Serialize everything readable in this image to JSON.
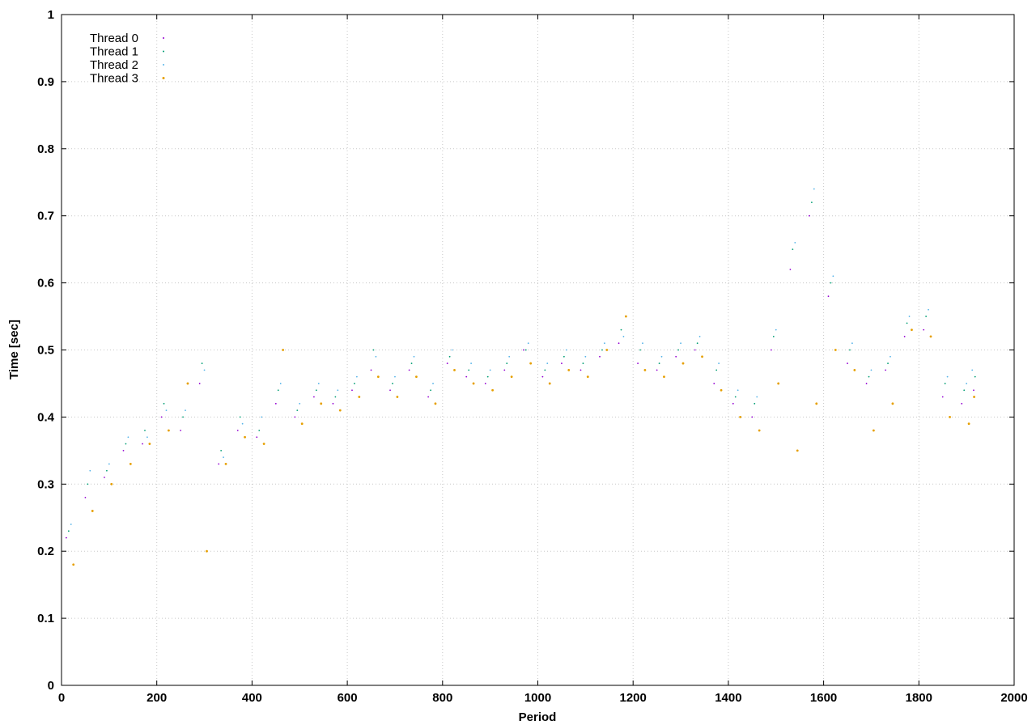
{
  "chart_data": {
    "type": "scatter",
    "xlabel": "Period",
    "ylabel": "Time [sec]",
    "xlim": [
      0,
      2000
    ],
    "ylim": [
      0,
      1
    ],
    "x_ticks": [
      "0",
      "200",
      "400",
      "600",
      "800",
      "1000",
      "1200",
      "1400",
      "1600",
      "1800",
      "2000"
    ],
    "y_ticks": [
      "0",
      "0.1",
      "0.2",
      "0.3",
      "0.4",
      "0.5",
      "0.6",
      "0.7",
      "0.8",
      "0.9",
      "1"
    ],
    "grid": true,
    "legend_position": "top-left",
    "series": [
      {
        "name": "Thread 0",
        "color": "#9400d3",
        "x": [
          10,
          50,
          90,
          130,
          170,
          210,
          250,
          290,
          330,
          370,
          410,
          450,
          490,
          530,
          570,
          610,
          650,
          690,
          730,
          770,
          810,
          850,
          890,
          930,
          970,
          1010,
          1050,
          1090,
          1130,
          1170,
          1210,
          1250,
          1290,
          1330,
          1370,
          1410,
          1450,
          1490,
          1530,
          1570,
          1610,
          1650,
          1690,
          1730,
          1770,
          1810,
          1850,
          1890,
          1915
        ],
        "y": [
          0.22,
          0.28,
          0.31,
          0.35,
          0.36,
          0.4,
          0.38,
          0.45,
          0.33,
          0.38,
          0.37,
          0.42,
          0.4,
          0.43,
          0.42,
          0.44,
          0.47,
          0.44,
          0.47,
          0.43,
          0.48,
          0.46,
          0.45,
          0.47,
          0.5,
          0.46,
          0.48,
          0.47,
          0.49,
          0.51,
          0.48,
          0.47,
          0.49,
          0.5,
          0.45,
          0.42,
          0.4,
          0.5,
          0.62,
          0.7,
          0.58,
          0.48,
          0.45,
          0.47,
          0.52,
          0.53,
          0.43,
          0.42,
          0.44
        ]
      },
      {
        "name": "Thread 1",
        "color": "#009e73",
        "x": [
          15,
          55,
          95,
          135,
          175,
          215,
          255,
          295,
          335,
          375,
          415,
          455,
          495,
          535,
          575,
          615,
          655,
          695,
          735,
          775,
          815,
          855,
          895,
          935,
          975,
          1015,
          1055,
          1095,
          1135,
          1175,
          1215,
          1255,
          1295,
          1335,
          1375,
          1415,
          1455,
          1495,
          1535,
          1575,
          1615,
          1655,
          1695,
          1735,
          1775,
          1815,
          1855,
          1895,
          1918
        ],
        "y": [
          0.23,
          0.3,
          0.32,
          0.36,
          0.38,
          0.42,
          0.4,
          0.48,
          0.35,
          0.4,
          0.38,
          0.44,
          0.41,
          0.44,
          0.43,
          0.45,
          0.5,
          0.45,
          0.48,
          0.44,
          0.49,
          0.47,
          0.46,
          0.48,
          0.5,
          0.47,
          0.49,
          0.48,
          0.5,
          0.53,
          0.5,
          0.48,
          0.5,
          0.51,
          0.47,
          0.43,
          0.42,
          0.52,
          0.65,
          0.72,
          0.6,
          0.5,
          0.46,
          0.48,
          0.54,
          0.55,
          0.45,
          0.44,
          0.46
        ]
      },
      {
        "name": "Thread 2",
        "color": "#56b4e9",
        "x": [
          20,
          60,
          100,
          140,
          180,
          220,
          260,
          300,
          340,
          380,
          420,
          460,
          500,
          540,
          580,
          620,
          660,
          700,
          740,
          780,
          820,
          860,
          900,
          940,
          980,
          1020,
          1060,
          1100,
          1140,
          1180,
          1220,
          1260,
          1300,
          1340,
          1380,
          1420,
          1460,
          1500,
          1540,
          1580,
          1620,
          1660,
          1700,
          1740,
          1780,
          1820,
          1860,
          1900,
          1912
        ],
        "y": [
          0.24,
          0.32,
          0.33,
          0.37,
          0.37,
          0.41,
          0.41,
          0.47,
          0.34,
          0.39,
          0.4,
          0.45,
          0.42,
          0.45,
          0.44,
          0.46,
          0.49,
          0.46,
          0.49,
          0.45,
          0.5,
          0.48,
          0.47,
          0.49,
          0.51,
          0.48,
          0.5,
          0.49,
          0.51,
          0.52,
          0.51,
          0.49,
          0.51,
          0.52,
          0.48,
          0.44,
          0.43,
          0.53,
          0.66,
          0.74,
          0.61,
          0.51,
          0.47,
          0.49,
          0.55,
          0.56,
          0.46,
          0.45,
          0.47
        ]
      },
      {
        "name": "Thread 3",
        "color": "#e69f00",
        "x": [
          25,
          65,
          105,
          145,
          185,
          225,
          265,
          305,
          345,
          385,
          425,
          465,
          505,
          545,
          585,
          625,
          665,
          705,
          745,
          785,
          825,
          865,
          905,
          945,
          985,
          1025,
          1065,
          1105,
          1145,
          1185,
          1225,
          1265,
          1305,
          1345,
          1385,
          1425,
          1465,
          1505,
          1545,
          1585,
          1625,
          1665,
          1705,
          1745,
          1785,
          1825,
          1865,
          1905,
          1916
        ],
        "y": [
          0.18,
          0.26,
          0.3,
          0.33,
          0.36,
          0.38,
          0.45,
          0.2,
          0.33,
          0.37,
          0.36,
          0.5,
          0.39,
          0.42,
          0.41,
          0.43,
          0.46,
          0.43,
          0.46,
          0.42,
          0.47,
          0.45,
          0.44,
          0.46,
          0.48,
          0.45,
          0.47,
          0.46,
          0.5,
          0.55,
          0.47,
          0.46,
          0.48,
          0.49,
          0.44,
          0.4,
          0.38,
          0.45,
          0.35,
          0.42,
          0.5,
          0.47,
          0.38,
          0.42,
          0.53,
          0.52,
          0.4,
          0.39,
          0.43
        ]
      }
    ]
  }
}
